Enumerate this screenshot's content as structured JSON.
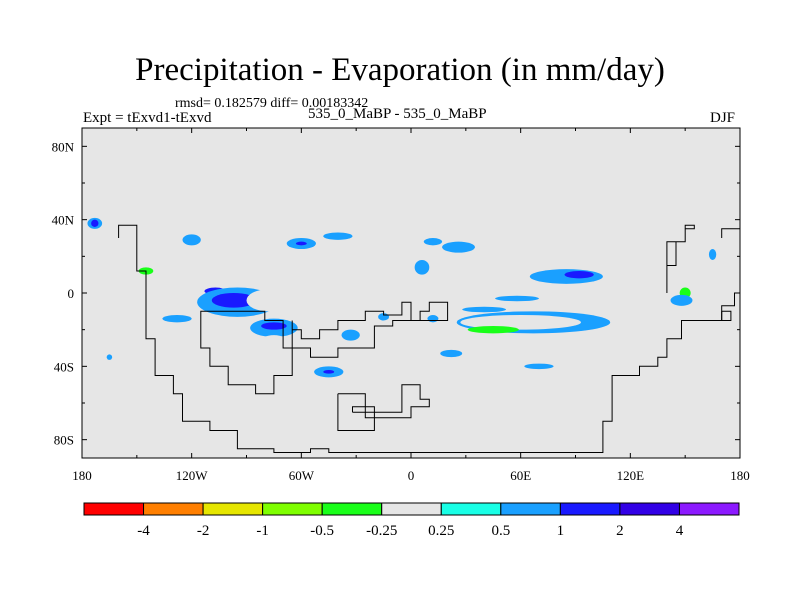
{
  "header": {
    "title": "Precipitation - Evaporation (in mm/day)",
    "stats": "rmsd= 0.182579 diff= 0.00183342",
    "expt": "Expt = tExvd1-tExvd",
    "case": "535_0_MaBP - 535_0_MaBP",
    "season": "DJF"
  },
  "chart_data": {
    "type": "heatmap",
    "title": "Precipitation - Evaporation (in mm/day)",
    "subtitle": "rmsd= 0.182579 diff= 0.00183342",
    "units": "mm/day",
    "xlim": [
      -180,
      180
    ],
    "ylim": [
      -90,
      90
    ],
    "x_ticks": [
      {
        "value": -180,
        "label": "180"
      },
      {
        "value": -120,
        "label": "120W"
      },
      {
        "value": -60,
        "label": "60W"
      },
      {
        "value": 0,
        "label": "0"
      },
      {
        "value": 60,
        "label": "60E"
      },
      {
        "value": 120,
        "label": "120E"
      },
      {
        "value": 180,
        "label": "180"
      }
    ],
    "y_ticks": [
      {
        "value": 80,
        "label": "80N"
      },
      {
        "value": 40,
        "label": "40N"
      },
      {
        "value": 0,
        "label": "0"
      },
      {
        "value": -40,
        "label": "40S"
      },
      {
        "value": -80,
        "label": "80S"
      }
    ],
    "colorbar": {
      "levels": [
        "-4",
        "-2",
        "-1",
        "-0.5",
        "-0.25",
        "0.25",
        "0.5",
        "1",
        "2",
        "4"
      ],
      "colors": [
        "#ff0000",
        "#ff7f00",
        "#e6e600",
        "#7fff00",
        "#19ff19",
        "#e6e6e6",
        "#19ffe6",
        "#1aa0ff",
        "#1919ff",
        "#3200e6",
        "#8c19ff"
      ]
    },
    "features": [
      {
        "lon": 26,
        "lat": 25,
        "rx": 9,
        "ry": 3,
        "level": "0.5"
      },
      {
        "lon": 12,
        "lat": 28,
        "rx": 5,
        "ry": 2,
        "level": "0.5"
      },
      {
        "lon": 6,
        "lat": 14,
        "rx": 4,
        "ry": 4,
        "level": "0.5"
      },
      {
        "lon": -40,
        "lat": 31,
        "rx": 8,
        "ry": 2,
        "level": "0.5"
      },
      {
        "lon": -60,
        "lat": 27,
        "rx": 8,
        "ry": 3,
        "level": "0.5"
      },
      {
        "lon": -60,
        "lat": 27,
        "rx": 3,
        "ry": 1,
        "level": "1"
      },
      {
        "lon": -120,
        "lat": 29,
        "rx": 5,
        "ry": 3,
        "level": "0.5"
      },
      {
        "lon": -173,
        "lat": 38,
        "rx": 4,
        "ry": 3,
        "level": "0.5"
      },
      {
        "lon": -173,
        "lat": 38,
        "rx": 2,
        "ry": 2,
        "level": "1"
      },
      {
        "lon": -165,
        "lat": 44,
        "rx": 2,
        "ry": 1,
        "level": "-0.25"
      },
      {
        "lon": -143,
        "lat": 45,
        "rx": 7,
        "ry": 1,
        "level": "-0.25"
      },
      {
        "lon": -120,
        "lat": 44,
        "rx": 4,
        "ry": 1,
        "level": "-0.25"
      },
      {
        "lon": -45,
        "lat": 52,
        "rx": 7,
        "ry": 1.5,
        "level": "-0.25"
      },
      {
        "lon": -30,
        "lat": 41,
        "rx": 7,
        "ry": 1.5,
        "level": "-0.25"
      },
      {
        "lon": 5,
        "lat": 37,
        "rx": 4,
        "ry": 2,
        "level": "-0.25"
      },
      {
        "lon": -90,
        "lat": 13,
        "rx": 5,
        "ry": 2,
        "level": "-0.25"
      },
      {
        "lon": -145,
        "lat": 12,
        "rx": 8,
        "ry": 5,
        "level": "-0.25"
      },
      {
        "lon": -145,
        "lat": 12,
        "rx": 4,
        "ry": 2,
        "level": "-0.5"
      },
      {
        "lon": -105,
        "lat": 1,
        "rx": 12,
        "ry": 3,
        "level": "-0.25"
      },
      {
        "lon": -107,
        "lat": 1,
        "rx": 6,
        "ry": 2,
        "level": "1"
      },
      {
        "lon": -95,
        "lat": -5,
        "rx": 22,
        "ry": 8,
        "level": "0.5"
      },
      {
        "lon": -97,
        "lat": -4,
        "rx": 12,
        "ry": 4,
        "level": "1"
      },
      {
        "lon": -78,
        "lat": -4,
        "rx": 12,
        "ry": 6,
        "level": "-0.25"
      },
      {
        "lon": -75,
        "lat": -19,
        "rx": 13,
        "ry": 5,
        "level": "0.5"
      },
      {
        "lon": -75,
        "lat": -18,
        "rx": 7,
        "ry": 2,
        "level": "1"
      },
      {
        "lon": -75,
        "lat": -27,
        "rx": 8,
        "ry": 4,
        "level": "-0.25"
      },
      {
        "lon": -50,
        "lat": -25,
        "rx": 9,
        "ry": 6,
        "level": "-0.25"
      },
      {
        "lon": -40,
        "lat": -30,
        "rx": 8,
        "ry": 4,
        "level": "-0.25"
      },
      {
        "lon": -33,
        "lat": -23,
        "rx": 5,
        "ry": 3,
        "level": "0.5"
      },
      {
        "lon": -45,
        "lat": -43,
        "rx": 8,
        "ry": 3,
        "level": "0.5"
      },
      {
        "lon": -45,
        "lat": -43,
        "rx": 3,
        "ry": 1,
        "level": "1"
      },
      {
        "lon": -140,
        "lat": -9,
        "rx": 5,
        "ry": 4,
        "level": "-0.25"
      },
      {
        "lon": -128,
        "lat": -14,
        "rx": 8,
        "ry": 2,
        "level": "0.5"
      },
      {
        "lon": -175,
        "lat": -16,
        "rx": 2,
        "ry": 2,
        "level": "-0.25"
      },
      {
        "lon": 67,
        "lat": -16,
        "rx": 42,
        "ry": 6,
        "level": "0.5"
      },
      {
        "lon": 60,
        "lat": -16,
        "rx": 33,
        "ry": 4,
        "level": "-0.25"
      },
      {
        "lon": 45,
        "lat": -20,
        "rx": 14,
        "ry": 2,
        "level": "-0.5"
      },
      {
        "lon": 40,
        "lat": -9,
        "rx": 12,
        "ry": 1.5,
        "level": "0.5"
      },
      {
        "lon": 58,
        "lat": -3,
        "rx": 12,
        "ry": 1.5,
        "level": "0.5"
      },
      {
        "lon": 85,
        "lat": 9,
        "rx": 20,
        "ry": 4,
        "level": "0.5"
      },
      {
        "lon": 92,
        "lat": 10,
        "rx": 8,
        "ry": 2,
        "level": "1"
      },
      {
        "lon": 20,
        "lat": -14,
        "rx": 4,
        "ry": 3,
        "level": "-0.25"
      },
      {
        "lon": 12,
        "lat": -14,
        "rx": 3,
        "ry": 2,
        "level": "0.5"
      },
      {
        "lon": -8,
        "lat": -15,
        "rx": 4,
        "ry": 3,
        "level": "-0.25"
      },
      {
        "lon": -15,
        "lat": -13,
        "rx": 3,
        "ry": 2,
        "level": "0.5"
      },
      {
        "lon": 70,
        "lat": -40,
        "rx": 8,
        "ry": 1.5,
        "level": "0.5"
      },
      {
        "lon": 22,
        "lat": -33,
        "rx": 6,
        "ry": 2,
        "level": "0.5"
      },
      {
        "lon": 150,
        "lat": 0,
        "rx": 6,
        "ry": 5,
        "level": "-0.25"
      },
      {
        "lon": 150,
        "lat": 0,
        "rx": 3,
        "ry": 3,
        "level": "-0.5"
      },
      {
        "lon": 153,
        "lat": 46,
        "rx": 5,
        "ry": 2,
        "level": "-0.25"
      },
      {
        "lon": 165,
        "lat": 21,
        "rx": 2,
        "ry": 3,
        "level": "0.5"
      },
      {
        "lon": 175,
        "lat": 5,
        "rx": 3,
        "ry": 3,
        "level": "-0.25"
      },
      {
        "lon": 175,
        "lat": -7,
        "rx": 3,
        "ry": 2,
        "level": "-0.25"
      },
      {
        "lon": 148,
        "lat": -4,
        "rx": 6,
        "ry": 3,
        "level": "0.5"
      },
      {
        "lon": 128,
        "lat": -4,
        "rx": 3,
        "ry": 1,
        "level": "-0.25"
      },
      {
        "lon": -168,
        "lat": -52,
        "rx": 2,
        "ry": 1,
        "level": "-0.25"
      },
      {
        "lon": -165,
        "lat": -35,
        "rx": 1.5,
        "ry": 1.5,
        "level": "0.5"
      }
    ],
    "coastlines": [
      {
        "name": "americas-west",
        "points": [
          [
            -160,
            30
          ],
          [
            -160,
            37
          ],
          [
            -150,
            37
          ],
          [
            -150,
            12
          ],
          [
            -145,
            12
          ],
          [
            -145,
            -25
          ],
          [
            -140,
            -25
          ],
          [
            -140,
            -45
          ],
          [
            -130,
            -45
          ],
          [
            -130,
            -55
          ],
          [
            -125,
            -55
          ],
          [
            -125,
            -70
          ],
          [
            -110,
            -70
          ],
          [
            -110,
            -75
          ],
          [
            -95,
            -75
          ],
          [
            -95,
            -85
          ],
          [
            -75,
            -85
          ],
          [
            -75,
            -87
          ],
          [
            -55,
            -87
          ],
          [
            -55,
            -85
          ],
          [
            -45,
            -85
          ],
          [
            -45,
            -87
          ],
          [
            105,
            -87
          ],
          [
            105,
            -70
          ],
          [
            110,
            -70
          ],
          [
            110,
            -45
          ],
          [
            125,
            -45
          ],
          [
            125,
            -40
          ],
          [
            135,
            -40
          ],
          [
            135,
            -35
          ],
          [
            140,
            -35
          ],
          [
            140,
            -25
          ],
          [
            148,
            -25
          ],
          [
            148,
            -15
          ],
          [
            170,
            -15
          ],
          [
            170,
            -7
          ],
          [
            177,
            -7
          ],
          [
            177,
            0
          ],
          [
            180,
            0
          ]
        ]
      },
      {
        "name": "south-america",
        "points": [
          [
            -115,
            -15
          ],
          [
            -115,
            -30
          ],
          [
            -110,
            -30
          ],
          [
            -110,
            -40
          ],
          [
            -100,
            -40
          ],
          [
            -100,
            -50
          ],
          [
            -85,
            -50
          ],
          [
            -85,
            -55
          ],
          [
            -75,
            -55
          ],
          [
            -75,
            -45
          ],
          [
            -65,
            -45
          ],
          [
            -65,
            -30
          ],
          [
            -70,
            -30
          ],
          [
            -70,
            -15
          ],
          [
            -80,
            -15
          ],
          [
            -80,
            -10
          ],
          [
            -115,
            -10
          ],
          [
            -115,
            -15
          ]
        ]
      },
      {
        "name": "central-landmass",
        "points": [
          [
            -65,
            -15
          ],
          [
            -65,
            -20
          ],
          [
            -60,
            -20
          ],
          [
            -60,
            -25
          ],
          [
            -50,
            -25
          ],
          [
            -50,
            -20
          ],
          [
            -40,
            -20
          ],
          [
            -40,
            -15
          ],
          [
            -25,
            -15
          ],
          [
            -25,
            -10
          ],
          [
            -15,
            -10
          ],
          [
            -15,
            -12
          ],
          [
            -5,
            -12
          ],
          [
            -5,
            -5
          ],
          [
            0,
            -5
          ],
          [
            0,
            -15
          ],
          [
            5,
            -15
          ],
          [
            5,
            -10
          ],
          [
            10,
            -10
          ],
          [
            10,
            -5
          ],
          [
            20,
            -5
          ],
          [
            20,
            -15
          ],
          [
            -10,
            -15
          ],
          [
            -10,
            -18
          ],
          [
            -20,
            -18
          ],
          [
            -20,
            -30
          ],
          [
            -40,
            -30
          ],
          [
            -40,
            -35
          ],
          [
            -55,
            -35
          ],
          [
            -55,
            -30
          ],
          [
            -65,
            -30
          ],
          [
            -65,
            -15
          ]
        ]
      },
      {
        "name": "southern-ring",
        "points": [
          [
            -40,
            -55
          ],
          [
            -40,
            -75
          ],
          [
            -20,
            -75
          ],
          [
            -20,
            -65
          ],
          [
            -5,
            -65
          ],
          [
            -5,
            -50
          ],
          [
            5,
            -50
          ],
          [
            5,
            -58
          ],
          [
            10,
            -58
          ],
          [
            10,
            -62
          ],
          [
            0,
            -62
          ],
          [
            0,
            -68
          ],
          [
            -25,
            -68
          ],
          [
            -25,
            -55
          ],
          [
            -40,
            -55
          ]
        ]
      },
      {
        "name": "southern-inner",
        "points": [
          [
            -32,
            -65
          ],
          [
            -20,
            -65
          ],
          [
            -20,
            -62
          ],
          [
            -32,
            -62
          ],
          [
            -32,
            -65
          ]
        ]
      },
      {
        "name": "east-arm",
        "points": [
          [
            140,
            0
          ],
          [
            140,
            15
          ],
          [
            145,
            15
          ],
          [
            145,
            28
          ],
          [
            150,
            28
          ],
          [
            150,
            35
          ],
          [
            155,
            35
          ],
          [
            155,
            37
          ],
          [
            150,
            37
          ],
          [
            150,
            28
          ],
          [
            140,
            28
          ],
          [
            140,
            0
          ]
        ]
      },
      {
        "name": "east-coast",
        "points": [
          [
            170,
            30
          ],
          [
            170,
            35
          ],
          [
            180,
            35
          ]
        ]
      },
      {
        "name": "east-island",
        "points": [
          [
            170,
            -10
          ],
          [
            175,
            -10
          ],
          [
            175,
            -15
          ],
          [
            170,
            -15
          ],
          [
            170,
            -10
          ]
        ]
      }
    ]
  }
}
